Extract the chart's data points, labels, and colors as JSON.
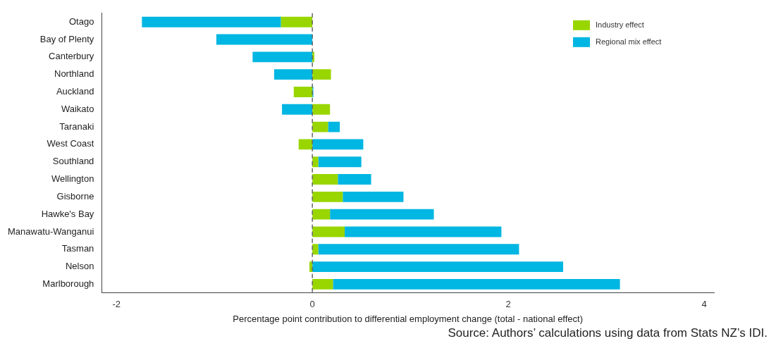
{
  "chart_data": {
    "type": "bar",
    "orientation": "horizontal",
    "stacked": true,
    "categories": [
      "Otago",
      "Bay of Plenty",
      "Canterbury",
      "Northland",
      "Auckland",
      "Waikato",
      "Taranaki",
      "West Coast",
      "Southland",
      "Wellington",
      "Gisborne",
      "Hawke's Bay",
      "Manawatu-Wanganui",
      "Tasman",
      "Nelson",
      "Marlborough"
    ],
    "series": [
      {
        "name": "Industry effect",
        "color": "#99d600",
        "values": [
          -0.32,
          null,
          0.02,
          0.19,
          -0.19,
          0.18,
          0.16,
          -0.14,
          0.06,
          0.26,
          0.31,
          0.18,
          0.33,
          0.06,
          -0.03,
          0.21
        ]
      },
      {
        "name": "Regional mix effect",
        "color": "#00b6e2",
        "values": [
          -1.42,
          -0.98,
          -0.61,
          -0.39,
          0.01,
          -0.31,
          0.12,
          0.52,
          0.44,
          0.34,
          0.62,
          1.06,
          1.6,
          2.05,
          2.56,
          2.93
        ]
      }
    ],
    "xlabel": "Percentage point contribution to differential employment change (total - national effect)",
    "xlim": [
      -2.15,
      4.1
    ],
    "xticks": [
      -2,
      0,
      2,
      4
    ],
    "ref_lines": [
      {
        "axis": "x",
        "value": 0,
        "color": "#666666",
        "line_style": "dashed"
      }
    ],
    "grid": false,
    "legend": "top right",
    "annotations": [
      "Source: Authors’ calculations using data from Stats NZ’s IDI."
    ]
  }
}
